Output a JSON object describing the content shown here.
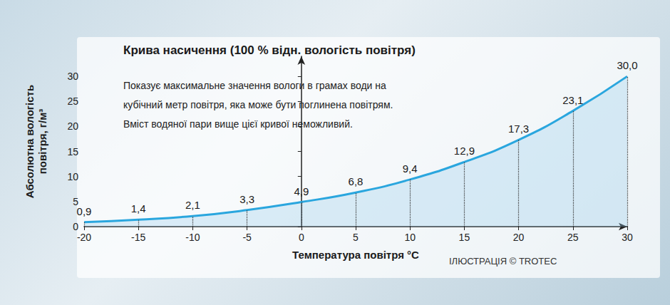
{
  "chart_data": {
    "type": "line",
    "title": "Крива насичення (100 % відн. вологість повітря)",
    "subtitle": [
      "Показує максимальне значення вологи в грамах води на",
      "кубічний метр повітря, яка може бути поглинена повітрям.",
      "Вміст водяної пари вище цієї кривої неможливий."
    ],
    "x_label": "Температура повітря °C",
    "y_label": "Абсолютна вологість повітря, г/м³",
    "annotations": [
      "ІЛЮСТРАЦІЯ © TROTEC"
    ],
    "x": [
      -20,
      -15,
      -10,
      -5,
      0,
      5,
      10,
      15,
      20,
      25,
      30
    ],
    "values": [
      0.9,
      1.4,
      2.1,
      3.3,
      4.9,
      6.8,
      9.4,
      12.9,
      17.3,
      23.1,
      30.0
    ],
    "value_labels": [
      "0,9",
      "1,4",
      "2,1",
      "3,3",
      "4,9",
      "6,8",
      "9,4",
      "12,9",
      "17,3",
      "23,1",
      "30,0"
    ],
    "color": "#2aa6de",
    "xlim": [
      -20,
      30
    ],
    "xticks": [
      -20,
      -15,
      -10,
      -5,
      0,
      5,
      10,
      15,
      20,
      25,
      30
    ],
    "ylim": [
      0,
      34
    ],
    "yticks": [
      0,
      5,
      10,
      15,
      20,
      25,
      30
    ],
    "grid": false,
    "data_labels": true
  }
}
